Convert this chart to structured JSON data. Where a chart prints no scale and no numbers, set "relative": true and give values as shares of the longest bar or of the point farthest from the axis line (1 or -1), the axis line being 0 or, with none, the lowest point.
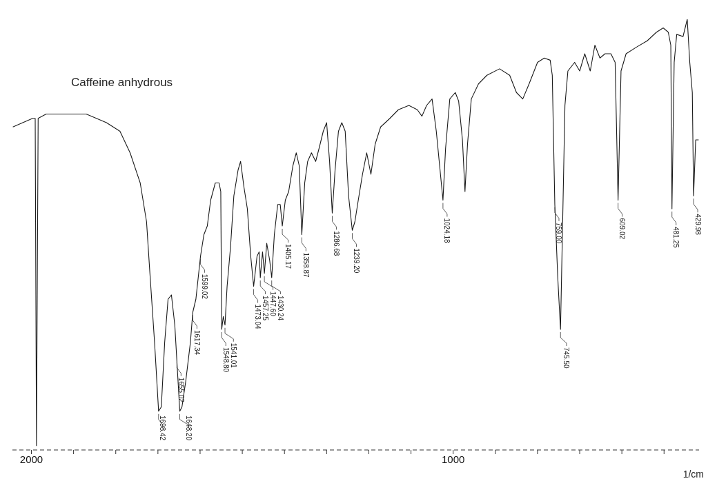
{
  "chart_data": {
    "type": "line",
    "title": "Caffeine anhydrous",
    "xlabel": "1/cm",
    "relative": true,
    "xlim": [
      2045,
      417
    ],
    "xticks": [
      2000,
      {
        "value": 1900,
        "label": null
      },
      {
        "value": 1800,
        "label": null
      },
      {
        "value": 1700,
        "label": null
      },
      {
        "value": 1600,
        "label": null
      },
      {
        "value": 1500,
        "label": null
      },
      {
        "value": 1400,
        "label": null
      },
      {
        "value": 1300,
        "label": null
      },
      {
        "value": 1200,
        "label": null
      },
      {
        "value": 1100,
        "label": null
      },
      1000,
      {
        "value": 900,
        "label": null
      },
      {
        "value": 800,
        "label": null
      },
      {
        "value": 700,
        "label": null
      },
      {
        "value": 600,
        "label": null
      },
      {
        "value": 500,
        "label": null
      }
    ],
    "series": [
      {
        "color": "#1a1a1a",
        "x": [
          2044,
          1997,
          1991,
          1988,
          1984,
          1965,
          1917,
          1870,
          1822,
          1790,
          1766,
          1742,
          1727,
          1719,
          1708,
          1698.42,
          1692,
          1684,
          1676,
          1668,
          1660,
          1648.2,
          1643,
          1634,
          1623,
          1617.34,
          1610,
          1599.02,
          1591,
          1583,
          1575,
          1564,
          1555,
          1551,
          1548.8,
          1545,
          1541.01,
          1536,
          1528,
          1520,
          1510,
          1504,
          1496,
          1488,
          1480,
          1473.04,
          1465,
          1460,
          1457.25,
          1452,
          1447.6,
          1442,
          1435,
          1430.24,
          1424,
          1416,
          1410,
          1405.17,
          1398,
          1390,
          1380,
          1372,
          1365,
          1358.87,
          1352,
          1345,
          1336,
          1326,
          1318,
          1308,
          1300,
          1293,
          1286.68,
          1280,
          1272,
          1264,
          1256,
          1248,
          1239.2,
          1233,
          1225,
          1215,
          1205,
          1195,
          1185,
          1172,
          1150,
          1130,
          1105,
          1085,
          1074,
          1063,
          1050,
          1040,
          1024.18,
          1018,
          1008,
          995,
          987,
          978,
          972,
          966,
          957,
          940,
          920,
          890,
          866,
          850,
          835,
          820,
          800,
          784,
          770,
          765,
          759,
          752,
          745.5,
          740,
          735,
          728,
          712,
          700,
          688,
          675,
          664,
          652,
          640,
          626,
          616,
          609.02,
          602,
          590,
          566,
          540,
          518,
          502,
          490,
          484,
          481.25,
          476,
          470,
          455,
          445,
          439,
          433,
          429.98,
          425,
          418
        ],
        "values": [
          0.75,
          0.77,
          0.77,
          0.01,
          0.77,
          0.78,
          0.78,
          0.78,
          0.76,
          0.74,
          0.69,
          0.62,
          0.53,
          0.41,
          0.25,
          0.09,
          0.1,
          0.25,
          0.35,
          0.36,
          0.29,
          0.09,
          0.1,
          0.16,
          0.25,
          0.32,
          0.35,
          0.45,
          0.5,
          0.52,
          0.58,
          0.62,
          0.62,
          0.6,
          0.28,
          0.31,
          0.29,
          0.38,
          0.47,
          0.59,
          0.65,
          0.67,
          0.61,
          0.56,
          0.45,
          0.38,
          0.45,
          0.46,
          0.4,
          0.46,
          0.41,
          0.48,
          0.44,
          0.4,
          0.5,
          0.57,
          0.57,
          0.52,
          0.58,
          0.6,
          0.66,
          0.69,
          0.66,
          0.5,
          0.62,
          0.67,
          0.69,
          0.67,
          0.7,
          0.74,
          0.76,
          0.67,
          0.55,
          0.65,
          0.74,
          0.76,
          0.74,
          0.59,
          0.51,
          0.53,
          0.58,
          0.64,
          0.69,
          0.64,
          0.71,
          0.75,
          0.77,
          0.79,
          0.8,
          0.79,
          0.775,
          0.8,
          0.815,
          0.74,
          0.58,
          0.7,
          0.815,
          0.83,
          0.81,
          0.72,
          0.6,
          0.71,
          0.815,
          0.85,
          0.87,
          0.885,
          0.87,
          0.83,
          0.815,
          0.85,
          0.9,
          0.91,
          0.905,
          0.87,
          0.57,
          0.4,
          0.28,
          0.55,
          0.8,
          0.88,
          0.9,
          0.88,
          0.92,
          0.88,
          0.94,
          0.91,
          0.92,
          0.92,
          0.9,
          0.58,
          0.88,
          0.92,
          0.935,
          0.95,
          0.97,
          0.98,
          0.97,
          0.94,
          0.56,
          0.9,
          0.965,
          0.96,
          1.0,
          0.9,
          0.83,
          0.59,
          0.72,
          0.72
        ]
      }
    ],
    "annotations": [
      {
        "text": "1698.42",
        "x": 1698.42,
        "y": 0.09
      },
      {
        "text": "1655.02",
        "x": 1655.02,
        "y": 0.21
      },
      {
        "text": "1648.20",
        "x": 1648.2,
        "y": 0.09
      },
      {
        "text": "1617.34",
        "x": 1617.34,
        "y": 0.32
      },
      {
        "text": "1599.02",
        "x": 1599.02,
        "y": 0.45
      },
      {
        "text": "1548.80",
        "x": 1548.8,
        "y": 0.28
      },
      {
        "text": "1541.01",
        "x": 1541.01,
        "y": 0.29
      },
      {
        "text": "1473.04",
        "x": 1473.04,
        "y": 0.38
      },
      {
        "text": "1457.25",
        "x": 1457.25,
        "y": 0.4
      },
      {
        "text": "1447.60",
        "x": 1447.6,
        "y": 0.41
      },
      {
        "text": "1430.24",
        "x": 1430.24,
        "y": 0.4
      },
      {
        "text": "1405.17",
        "x": 1405.17,
        "y": 0.52
      },
      {
        "text": "1358.87",
        "x": 1358.87,
        "y": 0.5
      },
      {
        "text": "1286.68",
        "x": 1286.68,
        "y": 0.55
      },
      {
        "text": "1239.20",
        "x": 1239.2,
        "y": 0.51
      },
      {
        "text": "1024.18",
        "x": 1024.18,
        "y": 0.58
      },
      {
        "text": "759.00",
        "x": 759,
        "y": 0.57
      },
      {
        "text": "745.50",
        "x": 745.5,
        "y": 0.28
      },
      {
        "text": "609.02",
        "x": 609.02,
        "y": 0.58
      },
      {
        "text": "481.25",
        "x": 481.25,
        "y": 0.56
      },
      {
        "text": "429.98",
        "x": 429.98,
        "y": 0.59
      }
    ]
  }
}
